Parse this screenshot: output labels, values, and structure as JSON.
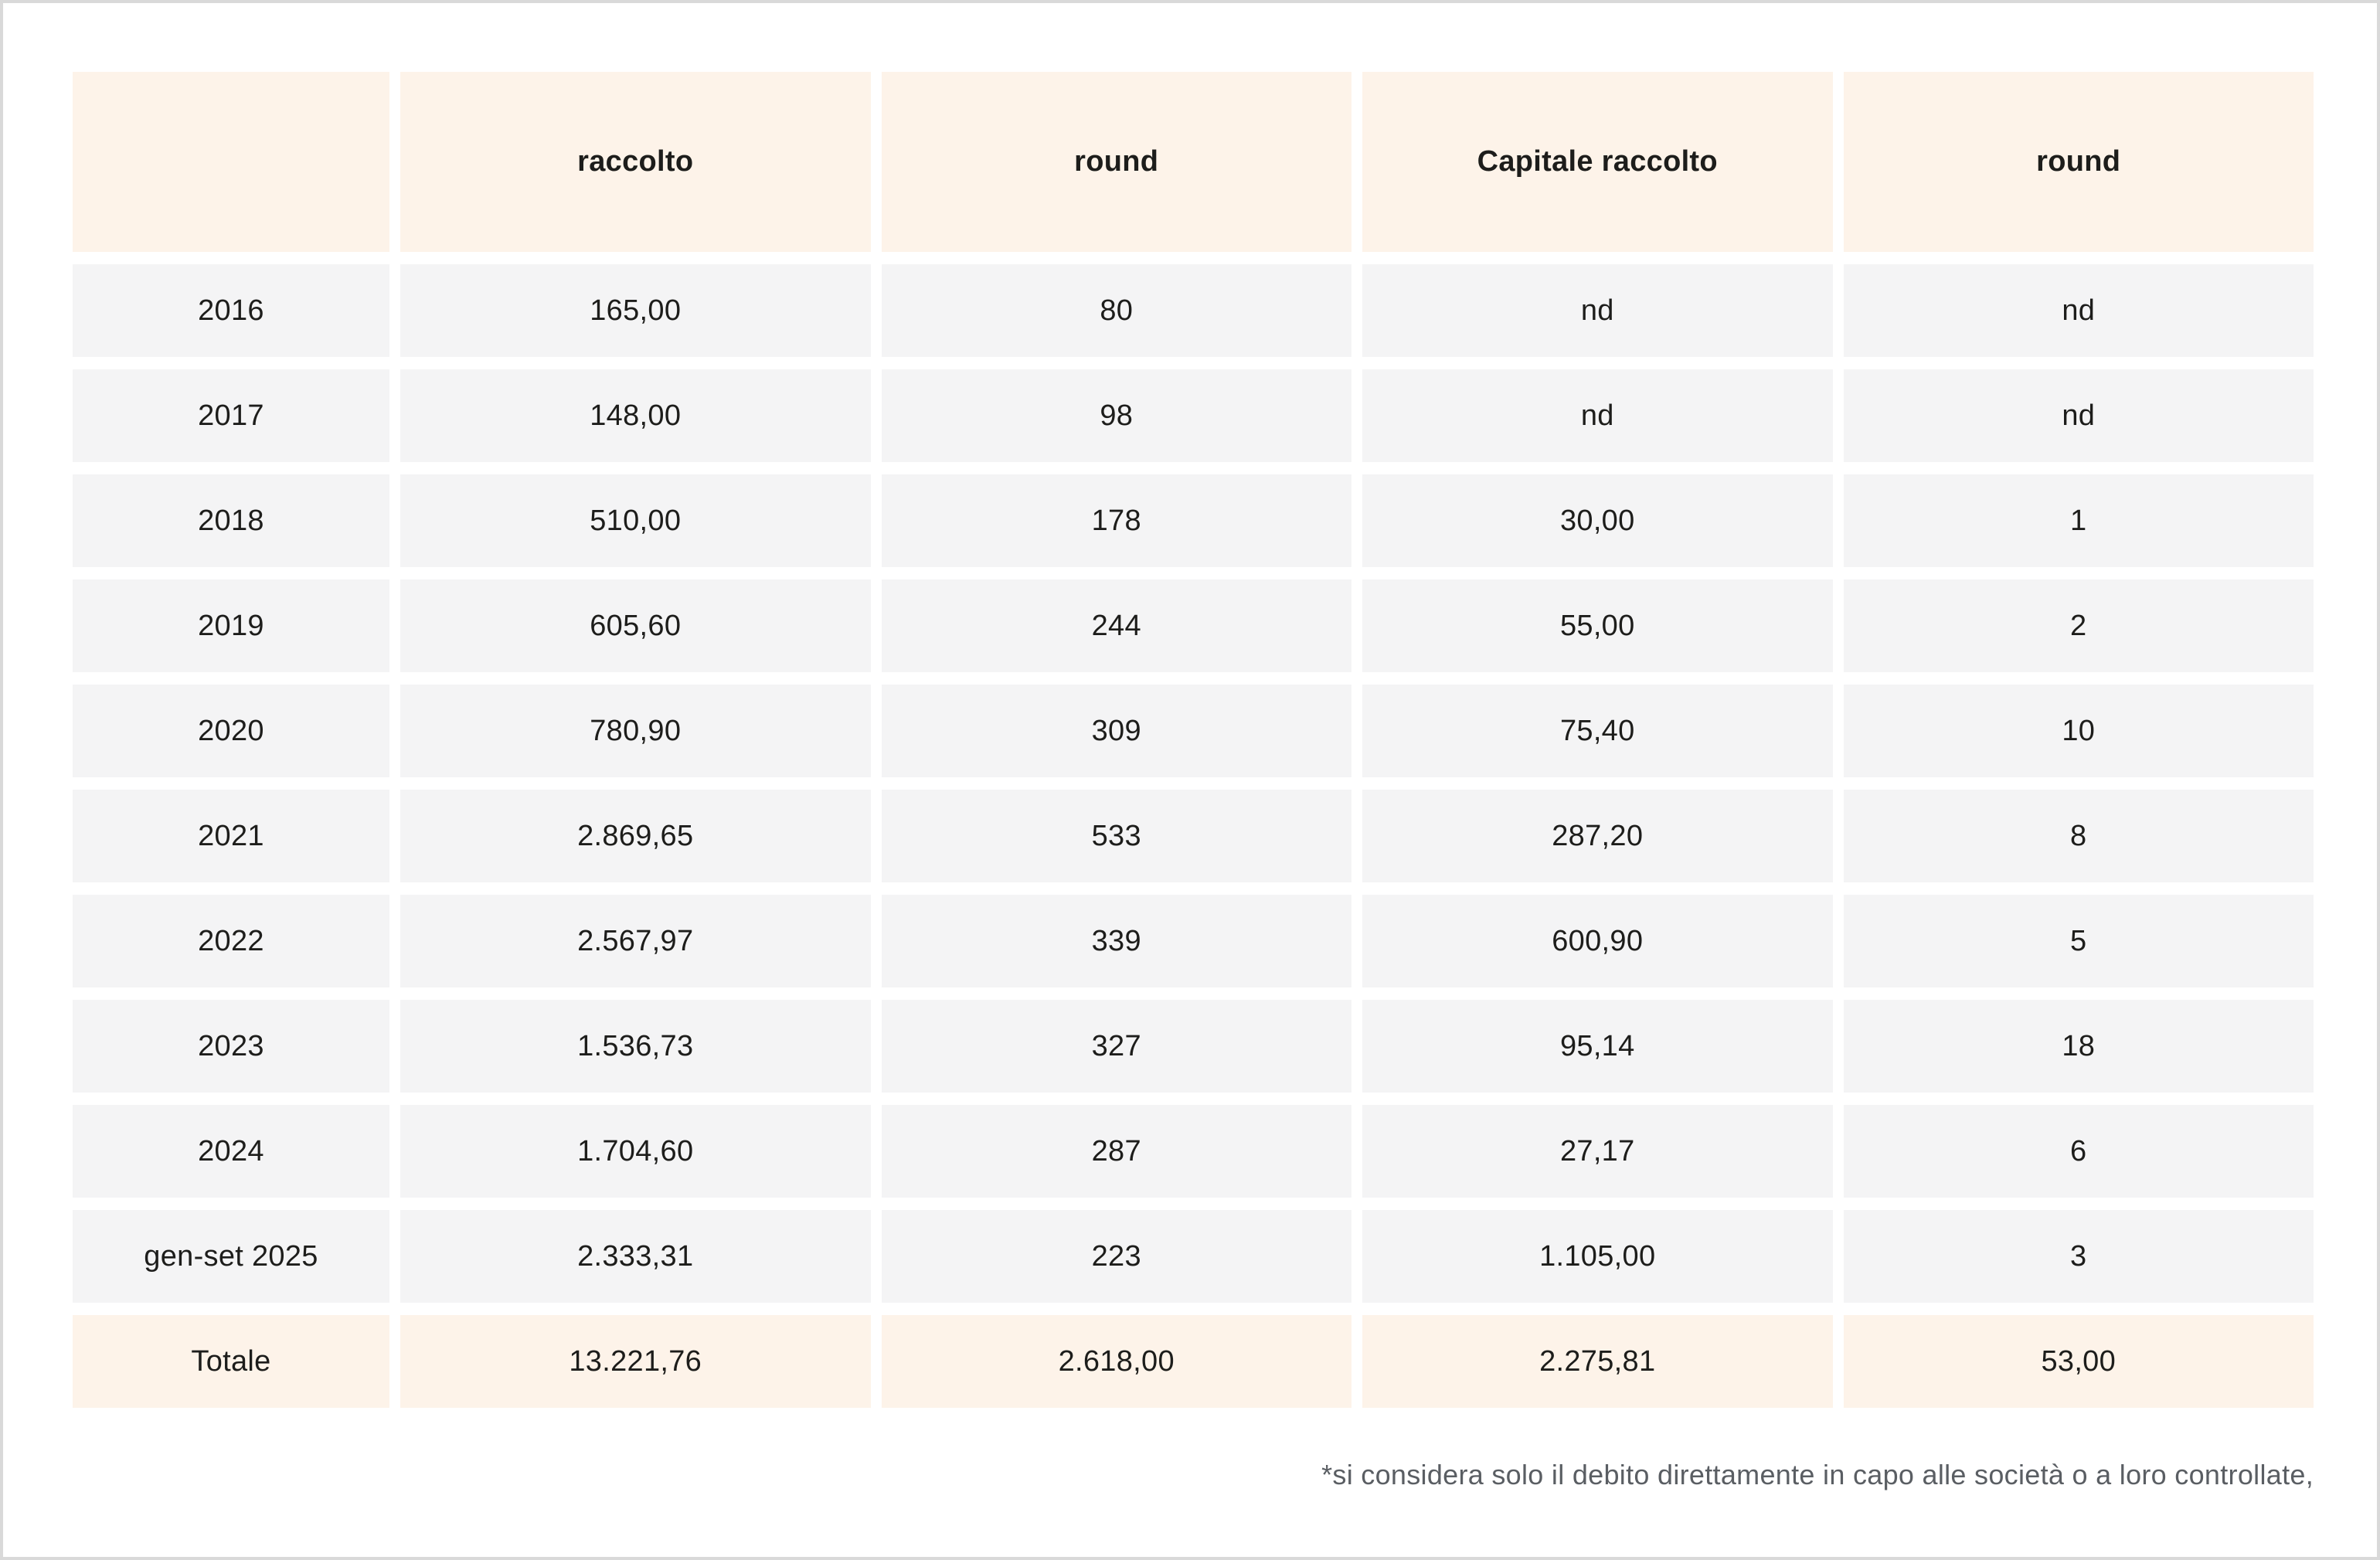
{
  "chart_data": {
    "type": "table",
    "columns": [
      "",
      "raccolto",
      "round",
      "Capitale raccolto",
      "round"
    ],
    "rows": [
      {
        "label": "2016",
        "values": [
          "165,00",
          "80",
          "nd",
          "nd"
        ]
      },
      {
        "label": "2017",
        "values": [
          "148,00",
          "98",
          "nd",
          "nd"
        ]
      },
      {
        "label": "2018",
        "values": [
          "510,00",
          "178",
          "30,00",
          "1"
        ]
      },
      {
        "label": "2019",
        "values": [
          "605,60",
          "244",
          "55,00",
          "2"
        ]
      },
      {
        "label": "2020",
        "values": [
          "780,90",
          "309",
          "75,40",
          "10"
        ]
      },
      {
        "label": "2021",
        "values": [
          "2.869,65",
          "533",
          "287,20",
          "8"
        ]
      },
      {
        "label": "2022",
        "values": [
          "2.567,97",
          "339",
          "600,90",
          "5"
        ]
      },
      {
        "label": "2023",
        "values": [
          "1.536,73",
          "327",
          "95,14",
          "18"
        ]
      },
      {
        "label": "2024",
        "values": [
          "1.704,60",
          "287",
          "27,17",
          "6"
        ]
      },
      {
        "label": "gen-set 2025",
        "values": [
          "2.333,31",
          "223",
          "1.105,00",
          "3"
        ]
      }
    ],
    "total": {
      "label": "Totale",
      "values": [
        "13.221,76",
        "2.618,00",
        "2.275,81",
        "53,00"
      ]
    }
  },
  "footnote": "*si considera solo il debito direttamente in capo alle società o a loro controllate,",
  "colors": {
    "header_bg": "#fdf3e9",
    "row_bg": "#f4f4f5",
    "total_bg": "#fdf3e9",
    "cell_text": "#1d1d1b",
    "footnote_text": "#5a5e63",
    "page_border": "#d9d9d9"
  }
}
